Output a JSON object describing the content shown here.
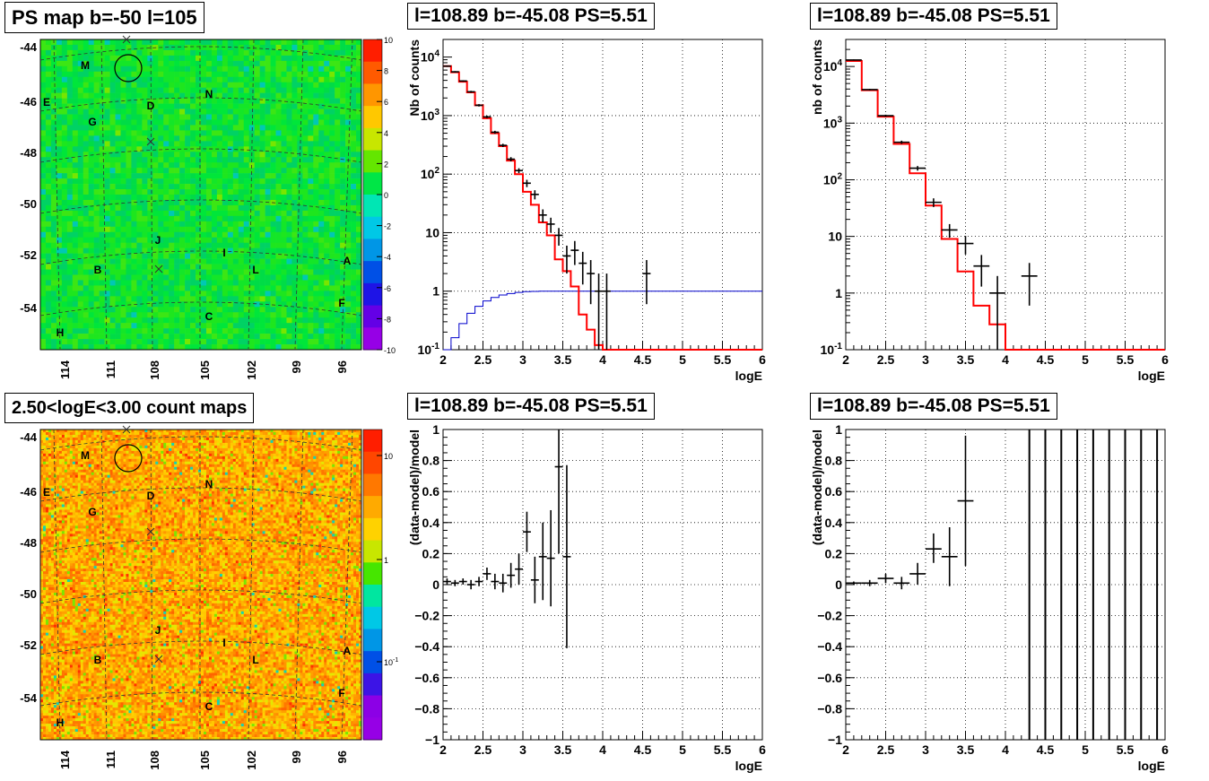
{
  "panels": {
    "ps_map": {
      "title": "PS map b=-50 l=105",
      "y_ticks": [
        "-44",
        "-46",
        "-48",
        "-50",
        "-52",
        "-54"
      ],
      "x_ticks": [
        "114",
        "111",
        "108",
        "105",
        "102",
        "99",
        "96"
      ],
      "colorbar_ticks": [
        "10",
        "8",
        "6",
        "4",
        "2",
        "0",
        "-2",
        "-4",
        "-6",
        "-8",
        "-10"
      ],
      "source_labels": [
        "M",
        "E",
        "G",
        "D",
        "N",
        "J",
        "I",
        "B",
        "L",
        "A",
        "F",
        "C",
        "H"
      ]
    },
    "count_map": {
      "title": "2.50<logE<3.00 count maps",
      "y_ticks": [
        "-44",
        "-46",
        "-48",
        "-50",
        "-52",
        "-54"
      ],
      "x_ticks": [
        "114",
        "111",
        "108",
        "105",
        "102",
        "99",
        "96"
      ],
      "colorbar_ticks": [
        "10",
        "1",
        "10^-1"
      ],
      "source_labels": [
        "M",
        "E",
        "G",
        "D",
        "N",
        "J",
        "I",
        "B",
        "L",
        "A",
        "F",
        "C",
        "H"
      ]
    },
    "spectrum_fine": {
      "title": "l=108.89 b=-45.08 PS=5.51",
      "ylabel": "Nb of counts",
      "xlabel": "logE"
    },
    "spectrum_coarse": {
      "title": "l=108.89 b=-45.08 PS=5.51",
      "ylabel": "nb of counts",
      "xlabel": "logE"
    },
    "residual_fine": {
      "title": "l=108.89 b=-45.08 PS=5.51",
      "ylabel": "(data-model)/model",
      "xlabel": "logE"
    },
    "residual_coarse": {
      "title": "l=108.89 b=-45.08 PS=5.51",
      "ylabel": "(data-model)/model",
      "xlabel": "logE"
    }
  },
  "colors": {
    "model_line": "#ff0000",
    "acceptance_line": "#0000cc",
    "data": "#000000"
  },
  "chart_data": [
    {
      "id": "spectrum_fine",
      "type": "line",
      "title": "l=108.89 b=-45.08 PS=5.51",
      "xlabel": "logE",
      "ylabel": "Nb of counts",
      "xlim": [
        2,
        6
      ],
      "ylim": [
        0.1,
        20000
      ],
      "log_y": true,
      "grid": true,
      "x_ticks": [
        2,
        2.5,
        3,
        3.5,
        4,
        4.5,
        5,
        5.5,
        6
      ],
      "y_ticks": [
        0.1,
        1,
        10,
        100,
        1000,
        10000
      ],
      "y_tick_labels": [
        "10^-1",
        "1",
        "10",
        "10^2",
        "10^3",
        "10^4"
      ],
      "model_histogram": {
        "name": "model",
        "bin_edges": [
          2.0,
          2.1,
          2.2,
          2.3,
          2.4,
          2.5,
          2.6,
          2.7,
          2.8,
          2.9,
          3.0,
          3.1,
          3.2,
          3.3,
          3.4,
          3.5,
          3.6,
          3.7,
          3.8,
          3.9,
          4.0,
          4.1,
          6.0
        ],
        "values": [
          7000,
          5500,
          3800,
          2500,
          1500,
          900,
          500,
          300,
          170,
          100,
          50,
          30,
          15,
          9,
          3.5,
          2.2,
          1.2,
          0.4,
          0.22,
          0.12,
          0.1,
          0.1
        ]
      },
      "acceptance_histogram": {
        "name": "acceptance",
        "bin_edges": [
          2.0,
          2.1,
          2.2,
          2.3,
          2.4,
          2.5,
          2.6,
          2.7,
          2.8,
          2.9,
          3.0,
          3.1,
          3.2,
          6.0
        ],
        "values": [
          0.1,
          0.16,
          0.28,
          0.42,
          0.55,
          0.68,
          0.78,
          0.86,
          0.91,
          0.95,
          0.98,
          0.99,
          1.0
        ]
      },
      "data_points": [
        {
          "x": 2.05,
          "y": 7000,
          "xerr": 0.05,
          "ylo": 6800,
          "yhi": 7200
        },
        {
          "x": 2.15,
          "y": 5600,
          "xerr": 0.05,
          "ylo": 5450,
          "yhi": 5750
        },
        {
          "x": 2.25,
          "y": 3900,
          "xerr": 0.05,
          "ylo": 3780,
          "yhi": 4020
        },
        {
          "x": 2.35,
          "y": 2550,
          "xerr": 0.05,
          "ylo": 2450,
          "yhi": 2650
        },
        {
          "x": 2.45,
          "y": 1500,
          "xerr": 0.05,
          "ylo": 1430,
          "yhi": 1570
        },
        {
          "x": 2.55,
          "y": 950,
          "xerr": 0.05,
          "ylo": 900,
          "yhi": 1000
        },
        {
          "x": 2.65,
          "y": 520,
          "xerr": 0.05,
          "ylo": 490,
          "yhi": 550
        },
        {
          "x": 2.75,
          "y": 310,
          "xerr": 0.05,
          "ylo": 290,
          "yhi": 330
        },
        {
          "x": 2.85,
          "y": 180,
          "xerr": 0.05,
          "ylo": 165,
          "yhi": 195
        },
        {
          "x": 2.95,
          "y": 115,
          "xerr": 0.05,
          "ylo": 104,
          "yhi": 126
        },
        {
          "x": 3.05,
          "y": 70,
          "xerr": 0.05,
          "ylo": 60,
          "yhi": 80
        },
        {
          "x": 3.15,
          "y": 45,
          "xerr": 0.05,
          "ylo": 37,
          "yhi": 53
        },
        {
          "x": 3.25,
          "y": 20,
          "xerr": 0.05,
          "ylo": 15,
          "yhi": 25
        },
        {
          "x": 3.35,
          "y": 14,
          "xerr": 0.05,
          "ylo": 10,
          "yhi": 18
        },
        {
          "x": 3.45,
          "y": 9,
          "xerr": 0.05,
          "ylo": 6,
          "yhi": 12
        },
        {
          "x": 3.55,
          "y": 4,
          "xerr": 0.05,
          "ylo": 2,
          "yhi": 6
        },
        {
          "x": 3.65,
          "y": 5,
          "xerr": 0.05,
          "ylo": 2.8,
          "yhi": 7.2
        },
        {
          "x": 3.75,
          "y": 3,
          "xerr": 0.05,
          "ylo": 1.3,
          "yhi": 4.7
        },
        {
          "x": 3.85,
          "y": 2,
          "xerr": 0.05,
          "ylo": 0.6,
          "yhi": 3.4
        },
        {
          "x": 3.95,
          "y": 1,
          "xerr": 0.05,
          "ylo": 0.1,
          "yhi": 2
        },
        {
          "x": 4.05,
          "y": 1,
          "xerr": 0.05,
          "ylo": 0.1,
          "yhi": 2
        },
        {
          "x": 4.55,
          "y": 2,
          "xerr": 0.05,
          "ylo": 0.6,
          "yhi": 3.4
        }
      ]
    },
    {
      "id": "spectrum_coarse",
      "type": "line",
      "title": "l=108.89 b=-45.08 PS=5.51",
      "xlabel": "logE",
      "ylabel": "nb of counts",
      "xlim": [
        2,
        6
      ],
      "ylim": [
        0.1,
        30000
      ],
      "log_y": true,
      "grid": true,
      "x_ticks": [
        2,
        2.5,
        3,
        3.5,
        4,
        4.5,
        5,
        5.5,
        6
      ],
      "y_ticks": [
        0.1,
        1,
        10,
        100,
        1000,
        10000
      ],
      "y_tick_labels": [
        "10^-1",
        "1",
        "10",
        "10^2",
        "10^3",
        "10^4"
      ],
      "model_histogram": {
        "name": "model",
        "bin_edges": [
          2.0,
          2.2,
          2.4,
          2.6,
          2.8,
          3.0,
          3.2,
          3.4,
          3.6,
          3.8,
          4.0,
          4.2,
          6.0
        ],
        "values": [
          12500,
          3800,
          1300,
          430,
          130,
          35,
          9,
          2.4,
          0.6,
          0.28,
          0.1,
          0.1
        ]
      },
      "data_points": [
        {
          "x": 2.1,
          "y": 13000,
          "xerr": 0.1,
          "ylo": 12700,
          "yhi": 13300
        },
        {
          "x": 2.3,
          "y": 3900,
          "xerr": 0.1,
          "ylo": 3780,
          "yhi": 4020
        },
        {
          "x": 2.5,
          "y": 1350,
          "xerr": 0.1,
          "ylo": 1290,
          "yhi": 1410
        },
        {
          "x": 2.7,
          "y": 460,
          "xerr": 0.1,
          "ylo": 430,
          "yhi": 490
        },
        {
          "x": 2.9,
          "y": 160,
          "xerr": 0.1,
          "ylo": 145,
          "yhi": 175
        },
        {
          "x": 3.1,
          "y": 40,
          "xerr": 0.1,
          "ylo": 33,
          "yhi": 47
        },
        {
          "x": 3.3,
          "y": 13,
          "xerr": 0.1,
          "ylo": 9.5,
          "yhi": 16.5
        },
        {
          "x": 3.5,
          "y": 7.5,
          "xerr": 0.1,
          "ylo": 4.8,
          "yhi": 10.2
        },
        {
          "x": 3.7,
          "y": 3,
          "xerr": 0.1,
          "ylo": 1.3,
          "yhi": 4.7
        },
        {
          "x": 3.9,
          "y": 1,
          "xerr": 0.1,
          "ylo": 0.1,
          "yhi": 2
        },
        {
          "x": 4.3,
          "y": 2,
          "xerr": 0.1,
          "ylo": 0.6,
          "yhi": 3.4
        }
      ]
    },
    {
      "id": "residual_fine",
      "type": "scatter",
      "title": "l=108.89 b=-45.08 PS=5.51",
      "xlabel": "logE",
      "ylabel": "(data-model)/model",
      "xlim": [
        2,
        6
      ],
      "ylim": [
        -1,
        1
      ],
      "grid": true,
      "x_ticks": [
        2,
        2.5,
        3,
        3.5,
        4,
        4.5,
        5,
        5.5,
        6
      ],
      "y_ticks": [
        -1,
        -0.8,
        -0.6,
        -0.4,
        -0.2,
        0,
        0.2,
        0.4,
        0.6,
        0.8,
        1
      ],
      "data_points": [
        {
          "x": 2.05,
          "y": 0.02,
          "xerr": 0.05,
          "ylo": 0.0,
          "yhi": 0.04
        },
        {
          "x": 2.15,
          "y": 0.01,
          "xerr": 0.05,
          "ylo": -0.01,
          "yhi": 0.03
        },
        {
          "x": 2.25,
          "y": 0.02,
          "xerr": 0.05,
          "ylo": 0.0,
          "yhi": 0.04
        },
        {
          "x": 2.35,
          "y": 0.0,
          "xerr": 0.05,
          "ylo": -0.03,
          "yhi": 0.03
        },
        {
          "x": 2.45,
          "y": 0.02,
          "xerr": 0.05,
          "ylo": -0.01,
          "yhi": 0.05
        },
        {
          "x": 2.55,
          "y": 0.07,
          "xerr": 0.05,
          "ylo": 0.03,
          "yhi": 0.11
        },
        {
          "x": 2.65,
          "y": 0.02,
          "xerr": 0.05,
          "ylo": -0.03,
          "yhi": 0.07
        },
        {
          "x": 2.75,
          "y": 0.01,
          "xerr": 0.05,
          "ylo": -0.05,
          "yhi": 0.07
        },
        {
          "x": 2.85,
          "y": 0.06,
          "xerr": 0.05,
          "ylo": -0.02,
          "yhi": 0.14
        },
        {
          "x": 2.95,
          "y": 0.1,
          "xerr": 0.05,
          "ylo": 0.0,
          "yhi": 0.2
        },
        {
          "x": 3.05,
          "y": 0.34,
          "xerr": 0.05,
          "ylo": 0.21,
          "yhi": 0.47
        },
        {
          "x": 3.15,
          "y": 0.03,
          "xerr": 0.05,
          "ylo": -0.12,
          "yhi": 0.18
        },
        {
          "x": 3.25,
          "y": 0.18,
          "xerr": 0.05,
          "ylo": -0.1,
          "yhi": 0.4
        },
        {
          "x": 3.35,
          "y": 0.17,
          "xerr": 0.05,
          "ylo": -0.14,
          "yhi": 0.48
        },
        {
          "x": 3.45,
          "y": 0.76,
          "xerr": 0.05,
          "ylo": 0.2,
          "yhi": 1.0
        },
        {
          "x": 3.55,
          "y": 0.18,
          "xerr": 0.05,
          "ylo": -0.41,
          "yhi": 0.77
        }
      ]
    },
    {
      "id": "residual_coarse",
      "type": "scatter",
      "title": "l=108.89 b=-45.08 PS=5.51",
      "xlabel": "logE",
      "ylabel": "(data-model)/model",
      "xlim": [
        2,
        6
      ],
      "ylim": [
        -1,
        1
      ],
      "grid": true,
      "x_ticks": [
        2,
        2.5,
        3,
        3.5,
        4,
        4.5,
        5,
        5.5,
        6
      ],
      "y_ticks": [
        -1,
        -0.8,
        -0.6,
        -0.4,
        -0.2,
        0,
        0.2,
        0.4,
        0.6,
        0.8,
        1
      ],
      "data_points": [
        {
          "x": 2.1,
          "y": 0.01,
          "xerr": 0.1,
          "ylo": 0.0,
          "yhi": 0.02
        },
        {
          "x": 2.3,
          "y": 0.01,
          "xerr": 0.1,
          "ylo": -0.01,
          "yhi": 0.03
        },
        {
          "x": 2.5,
          "y": 0.04,
          "xerr": 0.1,
          "ylo": 0.01,
          "yhi": 0.07
        },
        {
          "x": 2.7,
          "y": 0.01,
          "xerr": 0.1,
          "ylo": -0.03,
          "yhi": 0.05
        },
        {
          "x": 2.9,
          "y": 0.07,
          "xerr": 0.1,
          "ylo": 0.0,
          "yhi": 0.14
        },
        {
          "x": 3.1,
          "y": 0.23,
          "xerr": 0.1,
          "ylo": 0.14,
          "yhi": 0.33
        },
        {
          "x": 3.3,
          "y": 0.18,
          "xerr": 0.1,
          "ylo": -0.01,
          "yhi": 0.37
        },
        {
          "x": 3.5,
          "y": 0.54,
          "xerr": 0.1,
          "ylo": 0.12,
          "yhi": 0.96
        }
      ],
      "vertical_error_bars_at_x": [
        4.3,
        4.5,
        4.7,
        4.9,
        5.1,
        5.3,
        5.5,
        5.7,
        5.9
      ]
    }
  ]
}
